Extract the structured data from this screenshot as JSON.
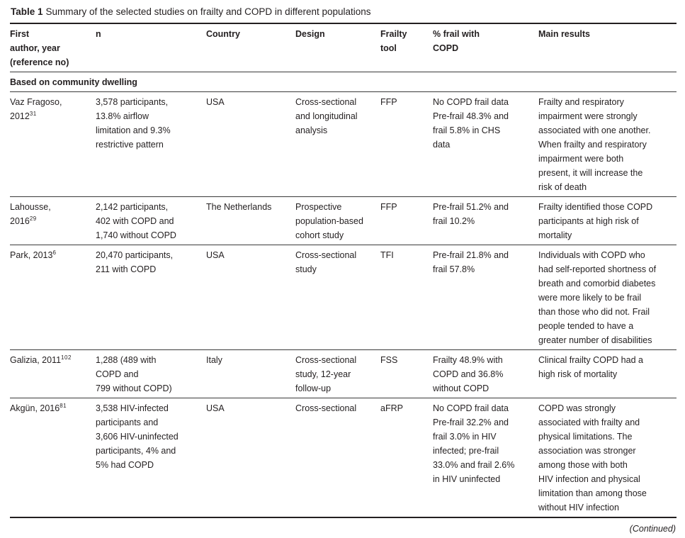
{
  "title": {
    "prefix": "Table 1",
    "text": "Summary of the selected studies on frailty and COPD in different populations"
  },
  "header": {
    "author": "First\nauthor, year\n(reference no)",
    "n": "n",
    "country": "Country",
    "design": "Design",
    "tool": "Frailty\ntool",
    "frail_pct": "% frail with\nCOPD",
    "results": "Main results"
  },
  "section": {
    "label": "Based on community dwelling"
  },
  "rows": [
    {
      "author": "Vaz Fragoso,\n2012",
      "ref": "31",
      "n": "3,578 participants,\n13.8% airflow\nlimitation and 9.3%\nrestrictive pattern",
      "country": "USA",
      "design": "Cross-sectional\nand longitudinal\nanalysis",
      "tool": "FFP",
      "frail_pct": "No COPD frail data\nPre-frail 48.3% and\nfrail 5.8% in CHS\ndata",
      "results": "Frailty and respiratory\nimpairment were strongly\nassociated with one another.\nWhen frailty and respiratory\nimpairment were both\npresent, it will increase the\nrisk of death"
    },
    {
      "author": "Lahousse,\n2016",
      "ref": "29",
      "n": "2,142 participants,\n402 with COPD and\n1,740 without COPD",
      "country": "The Netherlands",
      "design": "Prospective\npopulation-based\ncohort study",
      "tool": "FFP",
      "frail_pct": "Pre-frail 51.2% and\nfrail 10.2%",
      "results": "Frailty identified those COPD\nparticipants at high risk of\nmortality"
    },
    {
      "author": "Park, 2013",
      "ref": "6",
      "n": "20,470 participants,\n211 with COPD",
      "country": "USA",
      "design": "Cross-sectional\nstudy",
      "tool": "TFI",
      "frail_pct": "Pre-frail 21.8% and\nfrail 57.8%",
      "results": "Individuals with COPD who\nhad self-reported shortness of\nbreath and comorbid diabetes\nwere more likely to be frail\nthan those who did not. Frail\npeople tended to have a\ngreater number of disabilities"
    },
    {
      "author": "Galizia, 2011",
      "ref": "102",
      "n": "1,288 (489 with\nCOPD and\n799 without COPD)",
      "country": "Italy",
      "design": "Cross-sectional\nstudy, 12-year\nfollow-up",
      "tool": "FSS",
      "frail_pct": "Frailty 48.9% with\nCOPD and 36.8%\nwithout COPD",
      "results": "Clinical frailty COPD had a\nhigh risk of mortality"
    },
    {
      "author": "Akgün, 2016",
      "ref": "81",
      "n": "3,538 HIV-infected\nparticipants and\n3,606 HIV-uninfected\nparticipants, 4% and\n5% had COPD",
      "country": "USA",
      "design": "Cross-sectional",
      "tool": "aFRP",
      "frail_pct": "No COPD frail data\nPre-frail 32.2% and\nfrail 3.0% in HIV\ninfected; pre-frail\n33.0% and frail 2.6%\nin HIV uninfected",
      "results": "COPD was strongly\nassociated with frailty and\nphysical limitations. The\nassociation was stronger\namong those with both\nHIV infection and physical\nlimitation than among those\nwithout HIV infection"
    }
  ],
  "footer": {
    "continued": "(Continued)"
  }
}
